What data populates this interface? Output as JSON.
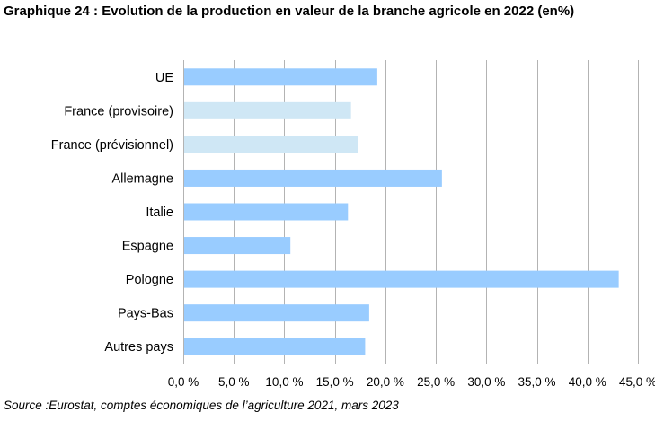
{
  "title": "Graphique 24 : Evolution de la production en valeur de la branche agricole en 2022 (en%)",
  "source": "Source :Eurostat, comptes économiques de l’agriculture 2021, mars 2023",
  "chart_data": {
    "type": "bar",
    "orientation": "horizontal",
    "categories": [
      "UE",
      "France (provisoire)",
      "France (prévisionnel)",
      "Allemagne",
      "Italie",
      "Espagne",
      "Pologne",
      "Pays-Bas",
      "Autres pays"
    ],
    "values": [
      19.2,
      16.6,
      17.3,
      25.6,
      16.3,
      10.6,
      43.1,
      18.4,
      18.0
    ],
    "bar_colors": [
      "#99ccff",
      "#cfe7f5",
      "#cfe7f5",
      "#99ccff",
      "#99ccff",
      "#99ccff",
      "#99ccff",
      "#99ccff",
      "#99ccff"
    ],
    "xlim": [
      0,
      45
    ],
    "xticks": [
      0,
      5,
      10,
      15,
      20,
      25,
      30,
      35,
      40,
      45
    ],
    "xtick_labels": [
      "0,0 %",
      "5,0 %",
      "10,0 %",
      "15,0 %",
      "20,0 %",
      "25,0 %",
      "30,0 %",
      "35,0 %",
      "40,0 %",
      "45,0 %"
    ],
    "grid": "vertical",
    "grid_color": "#b3b3b3"
  }
}
